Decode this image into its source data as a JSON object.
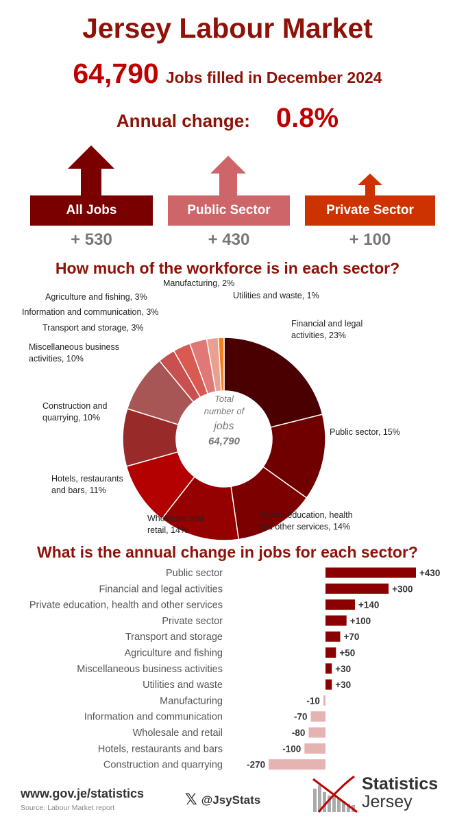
{
  "header": {
    "title": "Jersey Labour Market",
    "jobs_number": "64,790",
    "jobs_text": "Jobs filled in December 2024",
    "annual_change_label": "Annual change:",
    "annual_change_value": "0.8%"
  },
  "sectors": [
    {
      "label": "All Jobs",
      "value": "+ 530",
      "color": "#7a0000"
    },
    {
      "label": "Public Sector",
      "value": "+ 430",
      "color": "#cd6569"
    },
    {
      "label": "Private Sector",
      "value": "+ 100",
      "color": "#cc3300"
    }
  ],
  "donut_title": "How much of the workforce is in each sector?",
  "donut_center": {
    "line1": "Total",
    "line2": "number of",
    "line3": "jobs",
    "line4": "64,790"
  },
  "bar_title": "What is the annual change in jobs for each sector?",
  "chart_data": [
    {
      "type": "pie",
      "title": "How much of the workforce is in each sector?",
      "slices": [
        {
          "name": "Financial and legal activities",
          "value": 23,
          "label_line1": "Financial and legal",
          "label_line2": "activities, 23%",
          "color": "#4a0000"
        },
        {
          "name": "Public sector",
          "value": 15,
          "label_line1": "Public sector, 15%",
          "label_line2": "",
          "color": "#700000"
        },
        {
          "name": "Private education, health and other services",
          "value": 14,
          "label_line1": "Private education, health",
          "label_line2": "and other services, 14%",
          "color": "#7d0000"
        },
        {
          "name": "Wholesale and retail",
          "value": 14,
          "label_line1": "Wholesale and",
          "label_line2": "retail, 14%",
          "color": "#950000"
        },
        {
          "name": "Hotels, restaurants and bars",
          "value": 11,
          "label_line1": "Hotels, restaurants",
          "label_line2": "and bars, 11%",
          "color": "#b30000"
        },
        {
          "name": "Construction and quarrying",
          "value": 10,
          "label_line1": "Construction and",
          "label_line2": "quarrying, 10%",
          "color": "#992a2a"
        },
        {
          "name": "Miscellaneous business activities",
          "value": 10,
          "label_line1": "Miscellaneous business",
          "label_line2": "activities, 10%",
          "color": "#a85555"
        },
        {
          "name": "Transport and storage",
          "value": 3,
          "label_line1": "Transport and storage, 3%",
          "label_line2": "",
          "color": "#c85050"
        },
        {
          "name": "Information and communication",
          "value": 3,
          "label_line1": "Information and communication, 3%",
          "label_line2": "",
          "color": "#d85a50"
        },
        {
          "name": "Agriculture and fishing",
          "value": 3,
          "label_line1": "Agriculture and fishing, 3%",
          "label_line2": "",
          "color": "#e07878"
        },
        {
          "name": "Manufacturing",
          "value": 2,
          "label_line1": "Manufacturing, 2%",
          "label_line2": "",
          "color": "#e8a090"
        },
        {
          "name": "Utilities and waste",
          "value": 1,
          "label_line1": "Utilities and waste, 1%",
          "label_line2": "",
          "color": "#f08020"
        }
      ]
    },
    {
      "type": "bar",
      "orientation": "horizontal",
      "title": "What is the annual change in jobs for each sector?",
      "categories": [
        "Public sector",
        "Financial and legal activities",
        "Private education, health and other services",
        "Private sector",
        "Transport and storage",
        "Agriculture and fishing",
        "Miscellaneous business activities",
        "Utilities and waste",
        "Manufacturing",
        "Information and communication",
        "Wholesale and retail",
        "Hotels, restaurants and bars",
        "Construction and quarrying"
      ],
      "values": [
        430,
        300,
        140,
        100,
        70,
        50,
        30,
        30,
        -10,
        -70,
        -80,
        -100,
        -270
      ],
      "value_labels": [
        "+430",
        "+300",
        "+140",
        "+100",
        "+70",
        "+50",
        "+30",
        "+30",
        "-10",
        "-70",
        "-80",
        "-100",
        "-270"
      ],
      "positive_color": "#8b0000",
      "negative_color": "#e6b3b3"
    }
  ],
  "footer": {
    "url": "www.gov.je/statistics",
    "source": "Source: Labour Market report",
    "twitter_handle": "@JsyStats",
    "logo_line1": "Statistics",
    "logo_line2": "Jersey"
  }
}
